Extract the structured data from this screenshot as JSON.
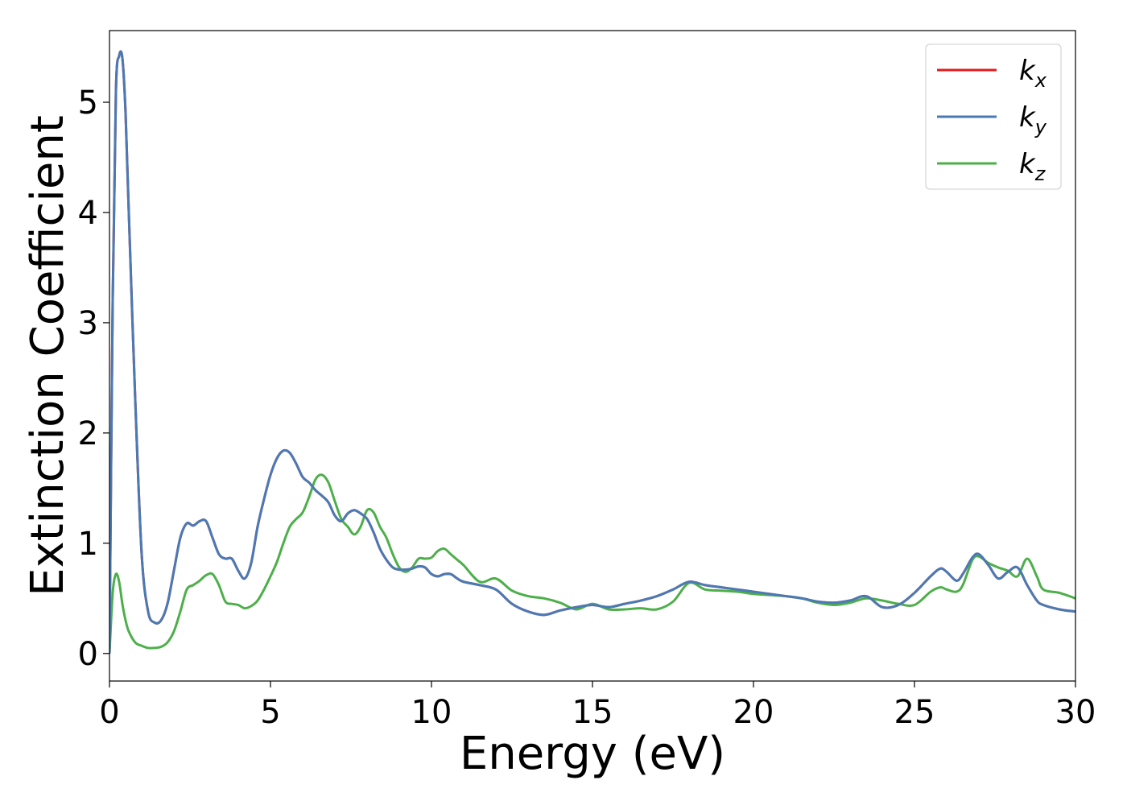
{
  "chart_data": {
    "type": "line",
    "title": "",
    "xlabel": "Energy (eV)",
    "ylabel": "Extinction Coefficient",
    "xlim": [
      0,
      30
    ],
    "ylim": [
      -0.25,
      5.65
    ],
    "xticks": [
      0,
      5,
      10,
      15,
      20,
      25,
      30
    ],
    "xtick_labels": [
      "0",
      "5",
      "10",
      "15",
      "20",
      "25",
      "30"
    ],
    "yticks": [
      0,
      1,
      2,
      3,
      4,
      5
    ],
    "ytick_labels": [
      "0",
      "1",
      "2",
      "3",
      "4",
      "5"
    ],
    "grid": false,
    "legend_position": "top-right",
    "series": [
      {
        "name": "k_x",
        "label_base": "k",
        "label_sub": "x",
        "color": "#e41a1c",
        "x": [
          0,
          0.1,
          0.2,
          0.3,
          0.4,
          0.5,
          0.6,
          0.8,
          1.0,
          1.2,
          1.4,
          1.6,
          1.8,
          2.0,
          2.2,
          2.4,
          2.6,
          2.8,
          3.0,
          3.2,
          3.4,
          3.6,
          3.8,
          4.0,
          4.2,
          4.4,
          4.6,
          4.8,
          5.0,
          5.2,
          5.4,
          5.6,
          5.8,
          6.0,
          6.2,
          6.4,
          6.6,
          6.8,
          7.0,
          7.2,
          7.4,
          7.6,
          7.8,
          8.0,
          8.2,
          8.4,
          8.6,
          8.8,
          9.0,
          9.2,
          9.4,
          9.6,
          9.8,
          10.0,
          10.2,
          10.4,
          10.6,
          10.8,
          11.0,
          11.5,
          12.0,
          12.5,
          13.0,
          13.5,
          14.0,
          14.5,
          15.0,
          15.5,
          16.0,
          16.5,
          17.0,
          17.5,
          18.0,
          18.5,
          19.0,
          19.5,
          20.0,
          20.5,
          21.0,
          21.5,
          22.0,
          22.5,
          23.0,
          23.5,
          24.0,
          24.5,
          25.0,
          25.5,
          25.8,
          26.0,
          26.3,
          26.5,
          26.8,
          27.0,
          27.3,
          27.6,
          27.9,
          28.2,
          28.5,
          28.8,
          29.0,
          29.5,
          30.0
        ],
        "y": [
          0.0,
          3.2,
          5.1,
          5.42,
          5.4,
          4.9,
          4.0,
          2.3,
          0.9,
          0.38,
          0.28,
          0.3,
          0.45,
          0.75,
          1.05,
          1.18,
          1.16,
          1.2,
          1.2,
          1.05,
          0.9,
          0.86,
          0.86,
          0.75,
          0.68,
          0.82,
          1.15,
          1.4,
          1.62,
          1.77,
          1.84,
          1.82,
          1.72,
          1.6,
          1.55,
          1.48,
          1.43,
          1.37,
          1.25,
          1.2,
          1.27,
          1.3,
          1.27,
          1.22,
          1.1,
          0.95,
          0.85,
          0.78,
          0.76,
          0.76,
          0.77,
          0.79,
          0.78,
          0.72,
          0.7,
          0.72,
          0.72,
          0.68,
          0.65,
          0.62,
          0.58,
          0.45,
          0.38,
          0.35,
          0.39,
          0.42,
          0.44,
          0.42,
          0.45,
          0.48,
          0.52,
          0.58,
          0.65,
          0.62,
          0.6,
          0.58,
          0.56,
          0.54,
          0.52,
          0.5,
          0.47,
          0.46,
          0.48,
          0.52,
          0.42,
          0.44,
          0.55,
          0.7,
          0.77,
          0.74,
          0.66,
          0.72,
          0.87,
          0.9,
          0.8,
          0.68,
          0.74,
          0.78,
          0.62,
          0.48,
          0.44,
          0.4,
          0.38
        ]
      },
      {
        "name": "k_y",
        "label_base": "k",
        "label_sub": "y",
        "color": "#4a7ab5",
        "x": [
          0,
          0.1,
          0.2,
          0.3,
          0.4,
          0.5,
          0.6,
          0.8,
          1.0,
          1.2,
          1.4,
          1.6,
          1.8,
          2.0,
          2.2,
          2.4,
          2.6,
          2.8,
          3.0,
          3.2,
          3.4,
          3.6,
          3.8,
          4.0,
          4.2,
          4.4,
          4.6,
          4.8,
          5.0,
          5.2,
          5.4,
          5.6,
          5.8,
          6.0,
          6.2,
          6.4,
          6.6,
          6.8,
          7.0,
          7.2,
          7.4,
          7.6,
          7.8,
          8.0,
          8.2,
          8.4,
          8.6,
          8.8,
          9.0,
          9.2,
          9.4,
          9.6,
          9.8,
          10.0,
          10.2,
          10.4,
          10.6,
          10.8,
          11.0,
          11.5,
          12.0,
          12.5,
          13.0,
          13.5,
          14.0,
          14.5,
          15.0,
          15.5,
          16.0,
          16.5,
          17.0,
          17.5,
          18.0,
          18.5,
          19.0,
          19.5,
          20.0,
          20.5,
          21.0,
          21.5,
          22.0,
          22.5,
          23.0,
          23.5,
          24.0,
          24.5,
          25.0,
          25.5,
          25.8,
          26.0,
          26.3,
          26.5,
          26.8,
          27.0,
          27.3,
          27.6,
          27.9,
          28.2,
          28.5,
          28.8,
          29.0,
          29.5,
          30.0
        ],
        "y": [
          0.0,
          3.2,
          5.1,
          5.42,
          5.4,
          4.9,
          4.0,
          2.3,
          0.9,
          0.38,
          0.28,
          0.3,
          0.45,
          0.75,
          1.05,
          1.18,
          1.16,
          1.2,
          1.2,
          1.05,
          0.9,
          0.86,
          0.86,
          0.75,
          0.68,
          0.82,
          1.15,
          1.4,
          1.62,
          1.77,
          1.84,
          1.82,
          1.72,
          1.6,
          1.55,
          1.48,
          1.43,
          1.37,
          1.25,
          1.2,
          1.27,
          1.3,
          1.27,
          1.22,
          1.1,
          0.95,
          0.85,
          0.78,
          0.76,
          0.76,
          0.77,
          0.79,
          0.78,
          0.72,
          0.7,
          0.72,
          0.72,
          0.68,
          0.65,
          0.62,
          0.58,
          0.45,
          0.38,
          0.35,
          0.39,
          0.42,
          0.44,
          0.42,
          0.45,
          0.48,
          0.52,
          0.58,
          0.65,
          0.62,
          0.6,
          0.58,
          0.56,
          0.54,
          0.52,
          0.5,
          0.47,
          0.46,
          0.48,
          0.52,
          0.42,
          0.44,
          0.55,
          0.7,
          0.77,
          0.74,
          0.66,
          0.72,
          0.87,
          0.9,
          0.8,
          0.68,
          0.74,
          0.78,
          0.62,
          0.48,
          0.44,
          0.4,
          0.38
        ]
      },
      {
        "name": "k_z",
        "label_base": "k",
        "label_sub": "z",
        "color": "#4daf4a",
        "x": [
          0,
          0.1,
          0.2,
          0.3,
          0.4,
          0.5,
          0.6,
          0.8,
          1.0,
          1.2,
          1.4,
          1.6,
          1.8,
          2.0,
          2.2,
          2.4,
          2.6,
          2.8,
          3.0,
          3.2,
          3.4,
          3.6,
          3.8,
          4.0,
          4.2,
          4.4,
          4.6,
          4.8,
          5.0,
          5.2,
          5.4,
          5.6,
          5.8,
          6.0,
          6.2,
          6.4,
          6.6,
          6.8,
          7.0,
          7.2,
          7.4,
          7.6,
          7.8,
          8.0,
          8.2,
          8.4,
          8.6,
          8.8,
          9.0,
          9.2,
          9.4,
          9.6,
          9.8,
          10.0,
          10.2,
          10.4,
          10.6,
          10.8,
          11.0,
          11.5,
          12.0,
          12.5,
          13.0,
          13.5,
          14.0,
          14.5,
          15.0,
          15.5,
          16.0,
          16.5,
          17.0,
          17.5,
          18.0,
          18.5,
          19.0,
          19.5,
          20.0,
          20.5,
          21.0,
          21.5,
          22.0,
          22.5,
          23.0,
          23.5,
          24.0,
          24.5,
          25.0,
          25.5,
          25.8,
          26.0,
          26.3,
          26.5,
          26.8,
          27.0,
          27.3,
          27.6,
          27.9,
          28.2,
          28.5,
          28.8,
          29.0,
          29.5,
          30.0
        ],
        "y": [
          0.0,
          0.55,
          0.72,
          0.65,
          0.45,
          0.3,
          0.2,
          0.1,
          0.07,
          0.05,
          0.05,
          0.06,
          0.1,
          0.2,
          0.38,
          0.58,
          0.62,
          0.66,
          0.71,
          0.72,
          0.62,
          0.47,
          0.45,
          0.44,
          0.41,
          0.43,
          0.48,
          0.58,
          0.7,
          0.83,
          1.0,
          1.15,
          1.22,
          1.28,
          1.42,
          1.58,
          1.62,
          1.55,
          1.38,
          1.22,
          1.15,
          1.08,
          1.15,
          1.3,
          1.28,
          1.15,
          1.05,
          0.9,
          0.78,
          0.74,
          0.78,
          0.86,
          0.86,
          0.87,
          0.93,
          0.95,
          0.9,
          0.85,
          0.8,
          0.65,
          0.68,
          0.57,
          0.52,
          0.5,
          0.46,
          0.4,
          0.45,
          0.4,
          0.4,
          0.41,
          0.4,
          0.47,
          0.64,
          0.58,
          0.57,
          0.56,
          0.54,
          0.53,
          0.52,
          0.5,
          0.46,
          0.44,
          0.46,
          0.5,
          0.48,
          0.45,
          0.44,
          0.56,
          0.6,
          0.58,
          0.56,
          0.62,
          0.85,
          0.88,
          0.82,
          0.78,
          0.75,
          0.7,
          0.86,
          0.7,
          0.58,
          0.55,
          0.5
        ]
      }
    ]
  }
}
